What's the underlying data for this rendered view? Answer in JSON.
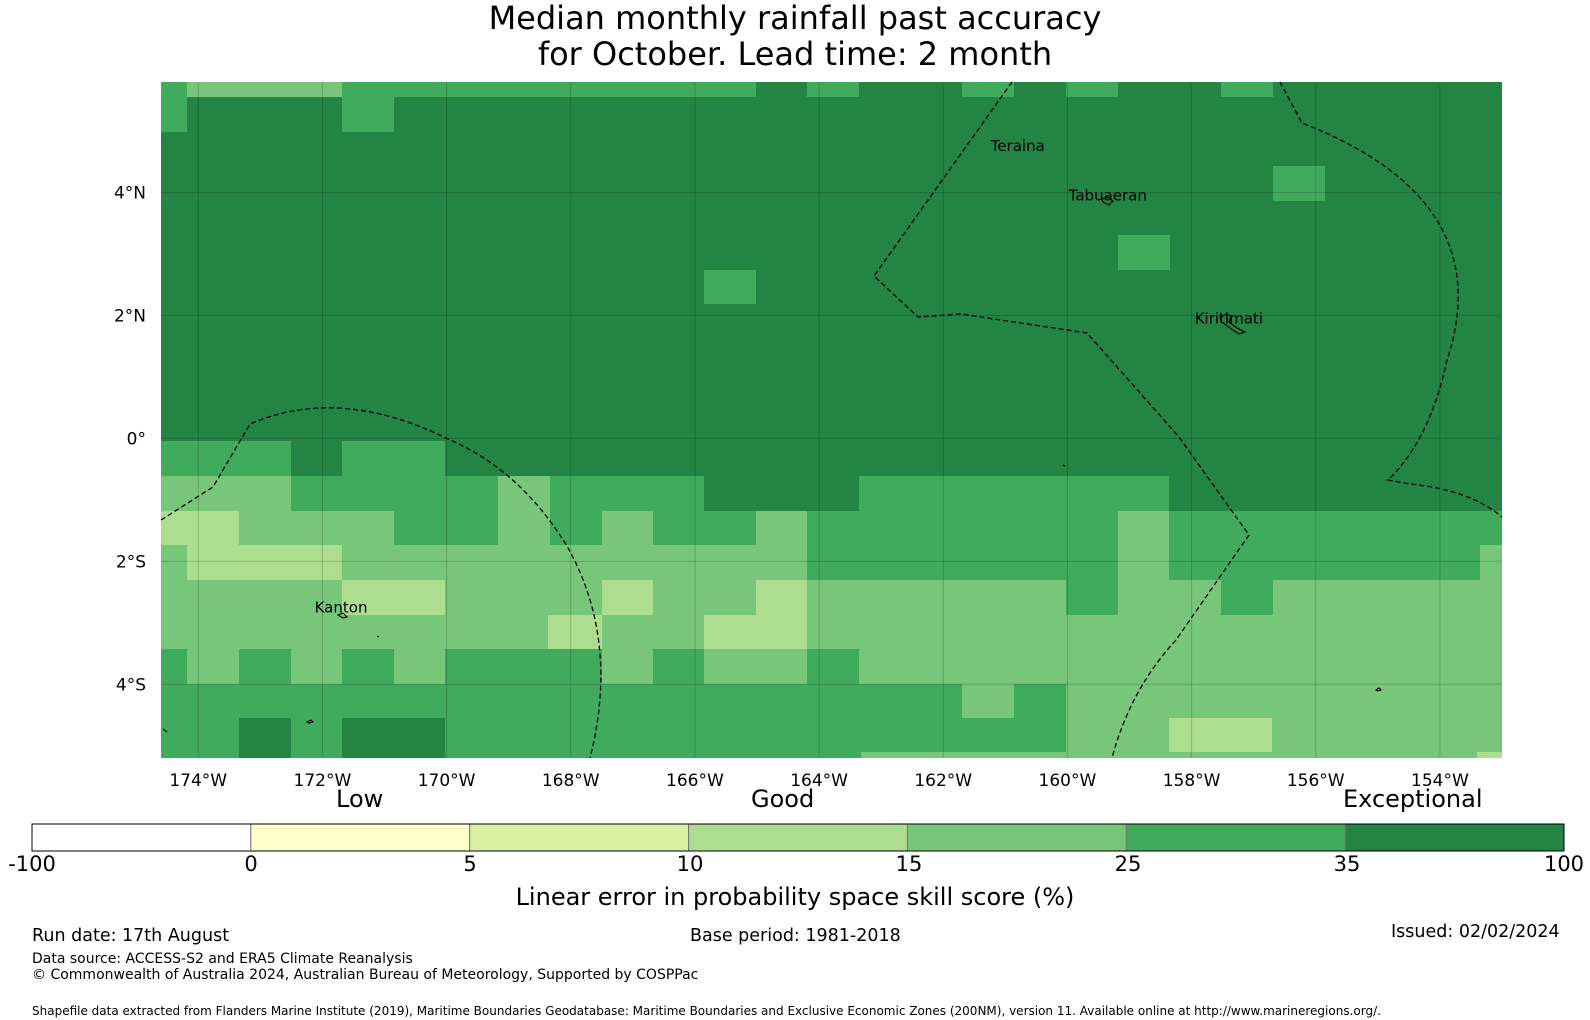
{
  "title_line1": "Median monthly rainfall past accuracy",
  "title_line2": "for October. Lead time: 2 month",
  "map": {
    "lon_range": [
      -174.6,
      -153.0
    ],
    "lat_range": [
      -5.2,
      5.8
    ],
    "x_ticks": [
      -174,
      -172,
      -170,
      -168,
      -166,
      -164,
      -162,
      -160,
      -158,
      -156,
      -154
    ],
    "x_tick_labels": [
      "174°W",
      "172°W",
      "170°W",
      "168°W",
      "166°W",
      "164°W",
      "162°W",
      "160°W",
      "158°W",
      "156°W",
      "154°W"
    ],
    "y_ticks": [
      4,
      2,
      0,
      -2,
      -4
    ],
    "y_tick_labels": [
      "4°N",
      "2°N",
      "0°",
      "2°S",
      "4°S"
    ],
    "grid": true,
    "places": [
      {
        "name": "Teraina",
        "label": "Teraina",
        "lon": -160.8,
        "lat": 4.68
      },
      {
        "name": "Tabuaeran",
        "label": "Tabuaeran",
        "lon": -159.35,
        "lat": 3.87
      },
      {
        "name": "Kiritimati",
        "label": "Kiritimati",
        "lon": -157.4,
        "lat": 1.87
      },
      {
        "name": "Kanton",
        "label": "Kanton",
        "lon": -171.7,
        "lat": -2.83
      }
    ]
  },
  "colorbar": {
    "categories": {
      "low": "Low",
      "good": "Good",
      "exceptional": "Exceptional"
    },
    "tick_labels": [
      "-100",
      "0",
      "5",
      "10",
      "15",
      "25",
      "35",
      "100"
    ],
    "colors": [
      "#ffffff",
      "#ffffcc",
      "#d9f0a3",
      "#addd8e",
      "#78c679",
      "#41ab5d",
      "#238443"
    ],
    "title": "Linear error in probability space skill score (%)"
  },
  "footer": {
    "run_date": "Run date: 17th August",
    "base_period": "Base period: 1981-2018",
    "issued": "Issued: 02/02/2024",
    "data_source": "Data source: ACCESS-S2 and ERA5 Climate Reanalysis",
    "copyright": "© Commonwealth of Australia 2024, Australian Bureau of Meteorology, Supported by COSPPac",
    "shapefile": "Shapefile data extracted from Flanders Marine Institute (2019), Maritime Boundaries Geodatabase: Maritime Boundaries and Exclusive Economic Zones (200NM), version 11. Available online at http://www.marineregions.org/."
  }
}
